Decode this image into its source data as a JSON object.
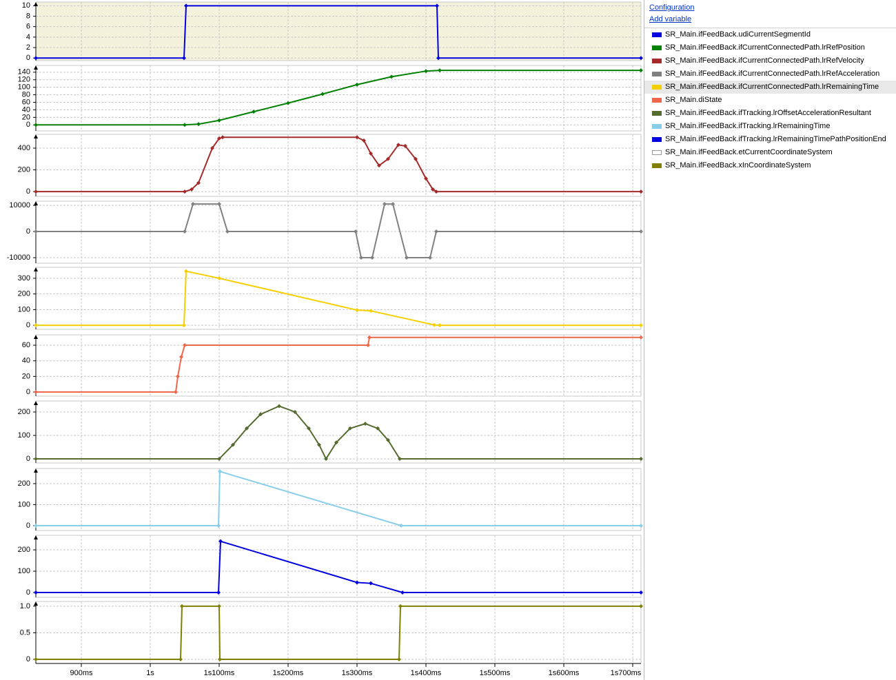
{
  "links": [
    "Configuration",
    "Add variable"
  ],
  "legend": {
    "items": [
      {
        "name": "SR_Main.ifFeedBack.udiCurrentSegmentId",
        "color": "#0000e0"
      },
      {
        "name": "SR_Main.ifFeedBack.ifCurrentConnectedPath.lrRefPosition",
        "color": "#008000"
      },
      {
        "name": "SR_Main.ifFeedBack.ifCurrentConnectedPath.lrRefVelocity",
        "color": "#a52a2a"
      },
      {
        "name": "SR_Main.ifFeedBack.ifCurrentConnectedPath.lrRefAcceleration",
        "color": "#808080"
      },
      {
        "name": "SR_Main.ifFeedBack.ifCurrentConnectedPath.lrRemainingTime",
        "color": "#f5d000"
      },
      {
        "name": "SR_Main.diState",
        "color": "#f0664a"
      },
      {
        "name": "SR_Main.ifFeedBack.ifTracking.lrOffsetAccelerationResultant",
        "color": "#556b2f"
      },
      {
        "name": "SR_Main.ifFeedBack.ifTracking.lrRemainingTime",
        "color": "#87ceeb"
      },
      {
        "name": "SR_Main.ifFeedBack.ifTracking.lrRemainingTimePathPositionEnd",
        "color": "#0000e0"
      },
      {
        "name": "SR_Main.ifFeedBack.etCurrentCoordinateSystem",
        "color": "#ffffff"
      },
      {
        "name": "SR_Main.ifFeedBack.xInCoordinateSystem",
        "color": "#808000"
      }
    ]
  },
  "time_axis": {
    "xlim": [
      834,
      1712
    ],
    "xticks": [
      {
        "value": 900,
        "label": "900ms"
      },
      {
        "value": 1000,
        "label": "1s"
      },
      {
        "value": 1100,
        "label": "1s100ms"
      },
      {
        "value": 1200,
        "label": "1s200ms"
      },
      {
        "value": 1300,
        "label": "1s300ms"
      },
      {
        "value": 1400,
        "label": "1s400ms"
      },
      {
        "value": 1500,
        "label": "1s500ms"
      },
      {
        "value": 1600,
        "label": "1s600ms"
      },
      {
        "value": 1700,
        "label": "1s700ms"
      }
    ]
  },
  "chart_data": [
    {
      "type": "line",
      "background": "#f4f2dc",
      "ylim": [
        -0.5,
        10.7
      ],
      "yticks": [
        0,
        2,
        4,
        6,
        8,
        10
      ],
      "x": [
        834,
        1049,
        1052,
        1416,
        1418,
        1712
      ],
      "series": [
        {
          "color": "#0000e0",
          "values": [
            0,
            0,
            10,
            10,
            0,
            0
          ]
        }
      ]
    },
    {
      "type": "line",
      "background": "#ffffff",
      "ylim": [
        -16,
        158
      ],
      "yticks": [
        0,
        20,
        40,
        60,
        80,
        100,
        120,
        140
      ],
      "x": [
        834,
        1050,
        1070,
        1100,
        1150,
        1200,
        1250,
        1300,
        1350,
        1400,
        1420,
        1712
      ],
      "series": [
        {
          "color": "#008000",
          "values": [
            0,
            0,
            2,
            12,
            35,
            58,
            82,
            107,
            128,
            143,
            145,
            145
          ]
        }
      ]
    },
    {
      "type": "line",
      "background": "#ffffff",
      "ylim": [
        -44,
        527
      ],
      "yticks": [
        0,
        200,
        400
      ],
      "x": [
        834,
        1050,
        1060,
        1070,
        1090,
        1100,
        1105,
        1300,
        1310,
        1320,
        1332,
        1345,
        1360,
        1370,
        1385,
        1400,
        1410,
        1415,
        1712
      ],
      "series": [
        {
          "color": "#a52a2a",
          "values": [
            0,
            0,
            20,
            80,
            400,
            490,
            500,
            500,
            470,
            350,
            240,
            300,
            430,
            420,
            300,
            120,
            20,
            0,
            0
          ]
        }
      ]
    },
    {
      "type": "line",
      "background": "#ffffff",
      "ylim": [
        -12100,
        11600
      ],
      "yticks": [
        10000,
        0,
        -10000
      ],
      "x": [
        834,
        1050,
        1062,
        1100,
        1112,
        1298,
        1306,
        1322,
        1340,
        1352,
        1372,
        1406,
        1415,
        1712
      ],
      "series": [
        {
          "color": "#808080",
          "values": [
            0,
            0,
            10500,
            10500,
            0,
            0,
            -10000,
            -10000,
            10500,
            10500,
            -10000,
            -10000,
            0,
            0
          ]
        }
      ]
    },
    {
      "type": "line",
      "background": "#ffffff",
      "ylim": [
        -26,
        370
      ],
      "yticks": [
        0,
        100,
        200,
        300
      ],
      "x": [
        834,
        1049,
        1052,
        1100,
        1300,
        1320,
        1412,
        1420,
        1712
      ],
      "series": [
        {
          "color": "#f5d000",
          "values": [
            0,
            0,
            345,
            300,
            97,
            92,
            2,
            0,
            0
          ]
        }
      ]
    },
    {
      "type": "line",
      "background": "#ffffff",
      "ylim": [
        -5.3,
        73.3
      ],
      "yticks": [
        0,
        20,
        40,
        60
      ],
      "x": [
        834,
        1037,
        1040,
        1045,
        1050,
        1316,
        1318,
        1712
      ],
      "series": [
        {
          "color": "#f0664a",
          "values": [
            0,
            0,
            20,
            45,
            60,
            60,
            70,
            70
          ]
        }
      ]
    },
    {
      "type": "line",
      "background": "#ffffff",
      "ylim": [
        -17.6,
        247
      ],
      "yticks": [
        0,
        100,
        200
      ],
      "x": [
        834,
        1100,
        1120,
        1140,
        1160,
        1187,
        1210,
        1230,
        1245,
        1255,
        1270,
        1290,
        1312,
        1330,
        1345,
        1362,
        1712
      ],
      "series": [
        {
          "color": "#556b2f",
          "values": [
            0,
            0,
            60,
            130,
            190,
            225,
            200,
            130,
            60,
            0,
            70,
            130,
            150,
            130,
            80,
            0,
            0
          ]
        }
      ]
    },
    {
      "type": "line",
      "background": "#ffffff",
      "ylim": [
        -23,
        272
      ],
      "yticks": [
        0,
        100,
        200
      ],
      "x": [
        834,
        1099,
        1101,
        1364,
        1712
      ],
      "series": [
        {
          "color": "#87ceeb",
          "values": [
            0,
            0,
            258,
            0,
            0
          ]
        }
      ]
    },
    {
      "type": "line",
      "background": "#ffffff",
      "ylim": [
        -22.6,
        268
      ],
      "yticks": [
        0,
        100,
        200
      ],
      "x": [
        834,
        1099,
        1102,
        1300,
        1320,
        1366,
        1712
      ],
      "series": [
        {
          "color": "#0000e0",
          "values": [
            0,
            0,
            240,
            47,
            43,
            0,
            0
          ]
        }
      ]
    },
    {
      "type": "line",
      "background": "#ffffff",
      "ylim": [
        -0.078,
        1.09
      ],
      "yticks": [
        0,
        0.5,
        {
          "value": 1,
          "label": "1.0"
        }
      ],
      "x": [
        834,
        1044,
        1046,
        1100,
        1101,
        1361,
        1363,
        1712
      ],
      "series": [
        {
          "color": "#808000",
          "values": [
            0,
            0,
            1,
            1,
            0,
            0,
            1,
            1
          ]
        }
      ]
    }
  ]
}
